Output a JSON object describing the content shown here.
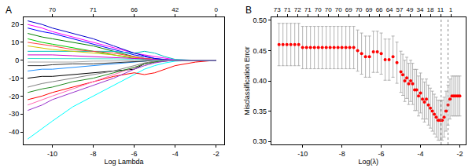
{
  "chart_data": [
    {
      "type": "line",
      "panel": "A",
      "x_label": "Log Lambda",
      "grid": false,
      "xlim": [
        -11.4,
        -1.6
      ],
      "xticks": [
        -10,
        -8,
        -6,
        -4,
        -2
      ],
      "ylim": [
        -47,
        24
      ],
      "yticks": [
        -40,
        -30,
        -20,
        -10,
        0,
        10,
        20
      ],
      "top_ticks": [
        {
          "value": -10,
          "label": "70"
        },
        {
          "value": -8,
          "label": "71"
        },
        {
          "value": -6,
          "label": "66"
        },
        {
          "value": -4,
          "label": "42"
        },
        {
          "value": -2,
          "label": "0"
        }
      ],
      "x": [
        -11.2,
        -10.5,
        -10,
        -9,
        -8,
        -7,
        -6,
        -5.5,
        -5,
        -4.5,
        -4,
        -3,
        -2
      ],
      "series": [
        {
          "color": "cyan",
          "values": [
            -44,
            -38,
            -34,
            -26,
            -20,
            -14,
            -8,
            -5,
            -3,
            -1.5,
            -0.5,
            0,
            0
          ]
        },
        {
          "color": "magenta",
          "values": [
            20,
            18,
            16,
            13,
            10,
            7,
            4,
            3,
            2,
            1,
            0.3,
            0,
            0
          ]
        },
        {
          "color": "blue",
          "values": [
            18,
            16,
            15,
            12,
            9,
            6,
            3,
            2,
            1,
            0.5,
            0,
            0,
            0
          ]
        },
        {
          "color": "red",
          "values": [
            -22,
            -20,
            -18,
            -15,
            -12,
            -9,
            -7,
            -8,
            -7,
            -5,
            -3,
            -1,
            0
          ]
        },
        {
          "color": "green",
          "values": [
            15,
            13,
            12,
            10,
            8,
            5,
            2,
            1,
            0.5,
            0,
            0,
            0,
            0
          ]
        },
        {
          "color": "black",
          "values": [
            -10,
            -9,
            -9,
            -8,
            -7,
            -6,
            -5,
            -2,
            -1,
            -0.5,
            0,
            0,
            0
          ]
        },
        {
          "color": "#00cd00",
          "values": [
            12,
            10,
            9,
            7,
            5,
            3,
            1,
            0.5,
            0,
            0,
            0,
            0,
            0
          ]
        },
        {
          "color": "#ff69b4",
          "values": [
            -25,
            -22,
            -20,
            -16,
            -12,
            -8,
            -4,
            -2,
            -1,
            -0.3,
            0,
            0,
            0
          ]
        },
        {
          "color": "#00bfbf",
          "values": [
            5,
            5,
            5,
            5,
            5,
            5,
            4,
            5,
            4,
            2,
            0.5,
            0,
            0
          ]
        },
        {
          "color": "gray",
          "values": [
            -15,
            -13,
            -12,
            -10,
            -8,
            -6,
            -3,
            -1.5,
            -0.5,
            0,
            0,
            0,
            0
          ]
        },
        {
          "color": "#d4c400",
          "values": [
            8,
            7,
            6,
            5,
            4,
            3,
            1.5,
            1,
            0.5,
            0,
            0,
            0,
            0
          ]
        },
        {
          "color": "#1e90ff",
          "values": [
            -6,
            -5,
            -5,
            -4,
            -3,
            -2,
            -1,
            -0.5,
            0,
            0,
            0,
            0,
            0
          ]
        },
        {
          "color": "#ff4040",
          "values": [
            10,
            9,
            8,
            6,
            5,
            4,
            2,
            1,
            0.5,
            0.2,
            0,
            0,
            0
          ]
        },
        {
          "color": "#228b22",
          "values": [
            -18,
            -16,
            -15,
            -12,
            -10,
            -7,
            -4,
            -2,
            -1,
            0,
            0,
            0,
            0
          ]
        },
        {
          "color": "#cd00cd",
          "values": [
            3,
            3,
            3,
            2.5,
            2,
            1.5,
            1,
            0.5,
            0.2,
            0,
            0,
            0,
            0
          ]
        },
        {
          "color": "#333333",
          "values": [
            -3,
            -3,
            -2.5,
            -2,
            -2,
            -1.5,
            -1,
            -0.5,
            0,
            0,
            0,
            0,
            0
          ]
        },
        {
          "color": "#40e0d0",
          "values": [
            1,
            1,
            1,
            1,
            1,
            0.8,
            0.5,
            0.2,
            0,
            0,
            0,
            0,
            0
          ]
        },
        {
          "color": "#9932cc",
          "values": [
            -28,
            -25,
            -22,
            -18,
            -14,
            -10,
            -5,
            -3,
            -1.5,
            -0.5,
            0,
            0,
            0
          ]
        },
        {
          "color": "#0000cd",
          "values": [
            22,
            20,
            18,
            15,
            12,
            8,
            4,
            2.5,
            1,
            0.3,
            0,
            0,
            0
          ]
        },
        {
          "color": "#a9a9a9",
          "values": [
            -1,
            -1,
            -1,
            -1,
            -0.5,
            -0.5,
            -0.3,
            0,
            0,
            0,
            0,
            0,
            0
          ]
        }
      ]
    },
    {
      "type": "scatter",
      "panel": "B",
      "x_label": "Log(λ)",
      "y_label": "Misclassification Error",
      "grid": false,
      "xlim": [
        -11.6,
        -1.7
      ],
      "xticks": [
        -10,
        -8,
        -6,
        -4,
        -2
      ],
      "ylim": [
        0.295,
        0.505
      ],
      "yticks": [
        {
          "value": 0.3,
          "label": "0.30"
        },
        0.35,
        {
          "value": 0.4,
          "label": "0.40"
        },
        0.45,
        {
          "value": 0.5,
          "label": "0.50"
        }
      ],
      "top_ticks": [
        {
          "value": -11.3,
          "label": "73"
        },
        {
          "value": -10.78,
          "label": "71"
        },
        {
          "value": -10.26,
          "label": "72"
        },
        {
          "value": -9.74,
          "label": "71"
        },
        {
          "value": -9.22,
          "label": "70"
        },
        {
          "value": -8.7,
          "label": "70"
        },
        {
          "value": -8.18,
          "label": "70"
        },
        {
          "value": -7.66,
          "label": "69"
        },
        {
          "value": -7.14,
          "label": "70"
        },
        {
          "value": -6.62,
          "label": "69"
        },
        {
          "value": -6.1,
          "label": "66"
        },
        {
          "value": -5.58,
          "label": "64"
        },
        {
          "value": -5.06,
          "label": "57"
        },
        {
          "value": -4.54,
          "label": "49"
        },
        {
          "value": -4.02,
          "label": "34"
        },
        {
          "value": -3.5,
          "label": "18"
        },
        {
          "value": -2.98,
          "label": "11"
        },
        {
          "value": -2.46,
          "label": "1"
        }
      ],
      "vlines": [
        -2.95,
        -2.6
      ],
      "x": [
        -11.2,
        -11.0,
        -10.8,
        -10.6,
        -10.4,
        -10.2,
        -10.0,
        -9.8,
        -9.6,
        -9.4,
        -9.2,
        -9.0,
        -8.8,
        -8.6,
        -8.4,
        -8.2,
        -8.0,
        -7.8,
        -7.6,
        -7.4,
        -7.2,
        -7.0,
        -6.8,
        -6.6,
        -6.4,
        -6.2,
        -6.0,
        -5.8,
        -5.6,
        -5.4,
        -5.2,
        -5.0,
        -4.9,
        -4.8,
        -4.7,
        -4.6,
        -4.5,
        -4.4,
        -4.3,
        -4.2,
        -4.1,
        -4.0,
        -3.9,
        -3.8,
        -3.7,
        -3.6,
        -3.5,
        -3.4,
        -3.3,
        -3.2,
        -3.1,
        -3.0,
        -2.9,
        -2.8,
        -2.7,
        -2.6,
        -2.5,
        -2.4,
        -2.3,
        -2.2,
        -2.1,
        -2.0
      ],
      "series": [
        {
          "color": "red",
          "marker": "circle",
          "values": [
            0.46,
            0.46,
            0.46,
            0.46,
            0.46,
            0.46,
            0.455,
            0.455,
            0.455,
            0.455,
            0.455,
            0.455,
            0.455,
            0.455,
            0.455,
            0.455,
            0.455,
            0.455,
            0.455,
            0.455,
            0.45,
            0.445,
            0.44,
            0.44,
            0.448,
            0.448,
            0.445,
            0.435,
            0.435,
            0.44,
            0.43,
            0.415,
            0.41,
            0.4,
            0.405,
            0.395,
            0.4,
            0.395,
            0.385,
            0.385,
            0.375,
            0.38,
            0.37,
            0.365,
            0.37,
            0.36,
            0.355,
            0.35,
            0.345,
            0.34,
            0.335,
            0.335,
            0.335,
            0.34,
            0.35,
            0.36,
            0.37,
            0.375,
            0.375,
            0.375,
            0.375,
            0.375
          ],
          "lower": [
            0.425,
            0.425,
            0.425,
            0.425,
            0.425,
            0.425,
            0.42,
            0.42,
            0.42,
            0.42,
            0.42,
            0.42,
            0.42,
            0.42,
            0.42,
            0.42,
            0.42,
            0.42,
            0.42,
            0.42,
            0.416,
            0.411,
            0.406,
            0.406,
            0.414,
            0.414,
            0.411,
            0.401,
            0.401,
            0.406,
            0.396,
            0.381,
            0.376,
            0.366,
            0.371,
            0.361,
            0.366,
            0.361,
            0.351,
            0.351,
            0.342,
            0.347,
            0.337,
            0.332,
            0.337,
            0.327,
            0.322,
            0.317,
            0.312,
            0.307,
            0.302,
            0.302,
            0.302,
            0.307,
            0.317,
            0.327,
            0.337,
            0.342,
            0.342,
            0.342,
            0.342,
            0.342
          ],
          "upper": [
            0.495,
            0.495,
            0.495,
            0.495,
            0.495,
            0.495,
            0.49,
            0.49,
            0.49,
            0.49,
            0.49,
            0.49,
            0.49,
            0.49,
            0.49,
            0.49,
            0.49,
            0.49,
            0.49,
            0.49,
            0.484,
            0.479,
            0.474,
            0.474,
            0.482,
            0.482,
            0.479,
            0.469,
            0.469,
            0.474,
            0.464,
            0.449,
            0.444,
            0.434,
            0.439,
            0.429,
            0.434,
            0.429,
            0.419,
            0.419,
            0.408,
            0.413,
            0.403,
            0.398,
            0.403,
            0.393,
            0.388,
            0.383,
            0.378,
            0.373,
            0.368,
            0.368,
            0.368,
            0.373,
            0.383,
            0.393,
            0.403,
            0.408,
            0.408,
            0.408,
            0.408,
            0.408
          ]
        }
      ]
    }
  ]
}
